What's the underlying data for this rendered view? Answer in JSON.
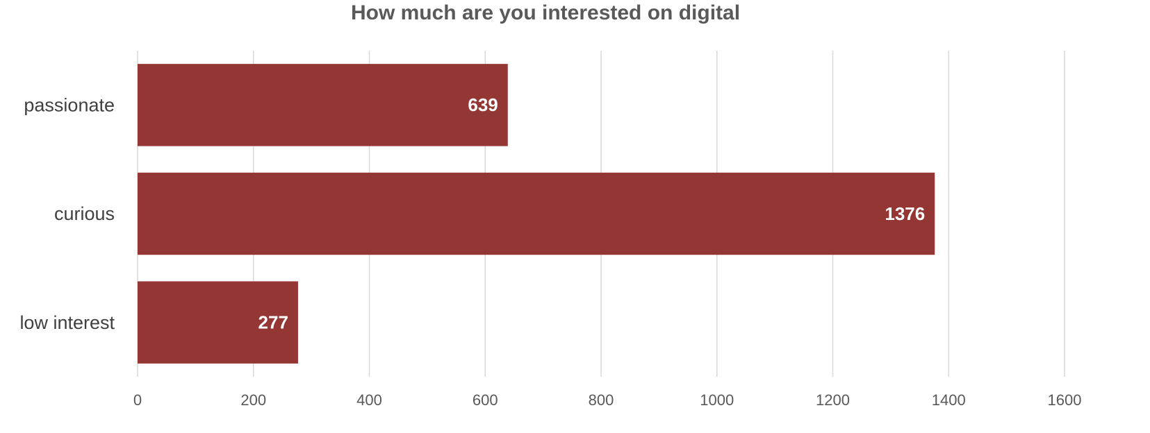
{
  "chart_data": {
    "type": "bar",
    "orientation": "horizontal",
    "title": "How much are you interested on digital",
    "categories": [
      "passionate",
      "curious",
      "low interest"
    ],
    "values": [
      639,
      1376,
      277
    ],
    "color": "#943634",
    "xlim": [
      0,
      1600
    ],
    "xticks": [
      0,
      200,
      400,
      600,
      800,
      1000,
      1200,
      1400,
      1600
    ],
    "grid": true,
    "data_labels": true
  }
}
